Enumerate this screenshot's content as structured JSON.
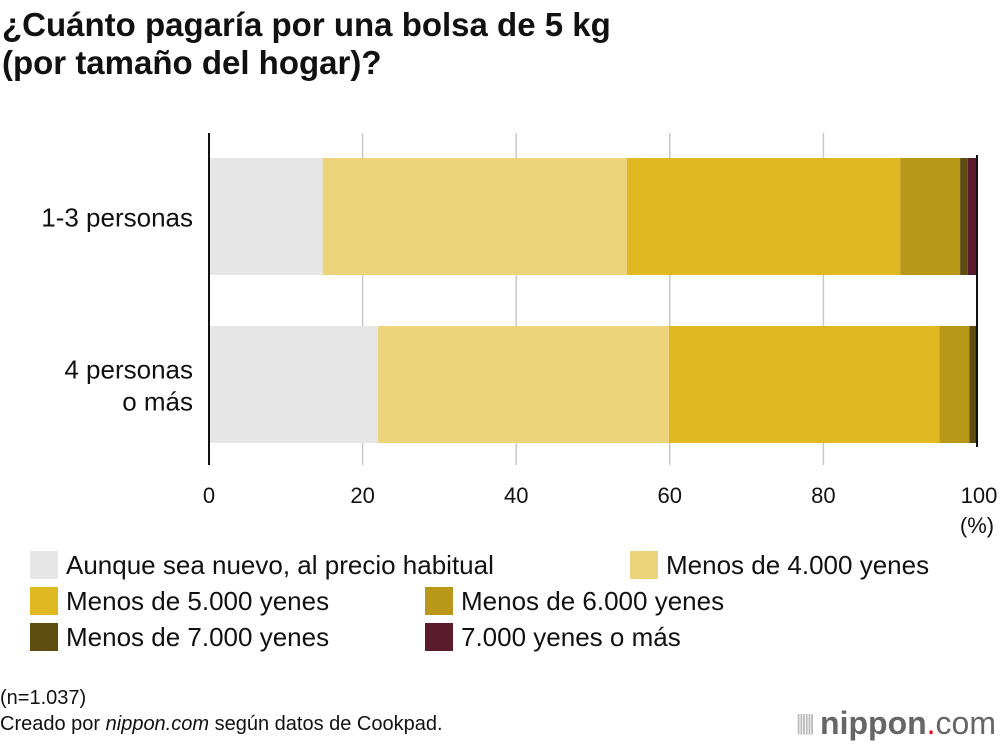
{
  "title_line1": "¿Cuánto pagaría por una bolsa de 5 kg",
  "title_line2": "(por tamaño del hogar)?",
  "chart_data": {
    "type": "bar",
    "orientation": "horizontal",
    "stacked": true,
    "categories": [
      [
        "1-3 personas"
      ],
      [
        "4 personas",
        "o más"
      ]
    ],
    "xlim": [
      0,
      100
    ],
    "xticks": [
      0,
      20,
      40,
      60,
      80,
      100
    ],
    "xunit": "(%)",
    "grid": true,
    "legend_placement": "bottom",
    "series": [
      {
        "name": "Aunque sea nuevo, al precio habitual",
        "color": "#e6e6e6",
        "values": [
          14.8,
          22.0
        ]
      },
      {
        "name": "Menos de 4.000 yenes",
        "color": "#ebd47c",
        "values": [
          39.6,
          37.9
        ]
      },
      {
        "name": "Menos de 5.000 yenes",
        "color": "#e0b822",
        "values": [
          35.6,
          35.2
        ]
      },
      {
        "name": "Menos de 6.000 yenes",
        "color": "#b99818",
        "values": [
          7.8,
          3.9
        ]
      },
      {
        "name": "Menos de 7.000 yenes",
        "color": "#5e4c10",
        "values": [
          1.0,
          0.8
        ]
      },
      {
        "name": "7.000 yenes o más",
        "color": "#5a1b2c",
        "values": [
          1.2,
          0.2
        ]
      }
    ]
  },
  "footer": {
    "note": "(n=1.037)",
    "credit_prefix": "Creado por ",
    "credit_site": "nippon.com",
    "credit_suffix": " según datos de Cookpad."
  },
  "logo": {
    "name": "nippon",
    "dot": ".",
    "tld": "com",
    "dot_color": "#e60012"
  }
}
